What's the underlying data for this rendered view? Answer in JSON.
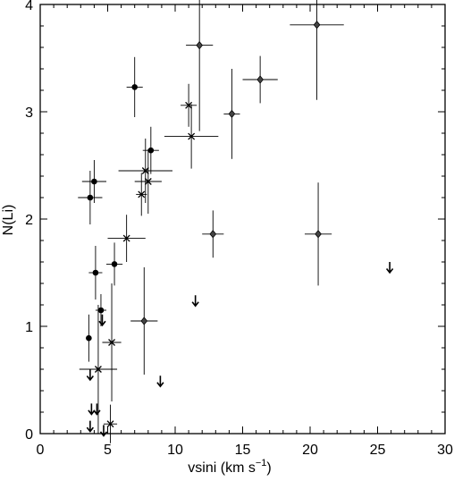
{
  "chart_data": {
    "type": "scatter",
    "title": "",
    "xlabel": "vsini (km s",
    "xlabel_unit_suffix": ")",
    "xlabel_superscript": "−1",
    "ylabel": "N(Li)",
    "xlim": [
      0,
      30
    ],
    "ylim": [
      0,
      4
    ],
    "x_ticks": [
      0,
      5,
      10,
      15,
      20,
      25,
      30
    ],
    "x_tick_labels": [
      "0",
      "5",
      "10",
      "15",
      "20",
      "25",
      "30"
    ],
    "y_ticks": [
      0,
      1,
      2,
      3,
      4
    ],
    "y_tick_labels": [
      "0",
      "1",
      "2",
      "3",
      "4"
    ],
    "grid": false,
    "legend": "none",
    "series": [
      {
        "marker": "filled-circle",
        "points": [
          {
            "x": 7.0,
            "y": 3.23,
            "xerr": 0.6,
            "yerr": 0.28
          },
          {
            "x": 8.2,
            "y": 2.64,
            "xerr": 0.6,
            "yerr": 0.22
          },
          {
            "x": 4.0,
            "y": 2.35,
            "xerr": 0.9,
            "yerr": 0.2
          },
          {
            "x": 3.7,
            "y": 2.2,
            "xerr": 0.9,
            "yerr": 0.25
          },
          {
            "x": 5.5,
            "y": 1.58,
            "xerr": 0.6,
            "yerr": 0.2
          },
          {
            "x": 4.1,
            "y": 1.5,
            "xerr": 0.5,
            "yerr": 0.25
          },
          {
            "x": 4.5,
            "y": 1.15,
            "xerr": 0.4,
            "yerr": 0.15
          },
          {
            "x": 3.6,
            "y": 0.89,
            "xerr": 0.0,
            "yerr": 0.22
          }
        ]
      },
      {
        "marker": "diamond",
        "points": [
          {
            "x": 20.5,
            "y": 3.81,
            "xerr": 2.0,
            "yerr": 0.7
          },
          {
            "x": 11.8,
            "y": 3.62,
            "xerr": 1.0,
            "yerr": 0.8
          },
          {
            "x": 16.3,
            "y": 3.3,
            "xerr": 1.3,
            "yerr": 0.22
          },
          {
            "x": 14.2,
            "y": 2.98,
            "xerr": 0.6,
            "yerr": 0.42
          },
          {
            "x": 12.8,
            "y": 1.86,
            "xerr": 0.8,
            "yerr": 0.22
          },
          {
            "x": 20.6,
            "y": 1.86,
            "xerr": 1.0,
            "yerr": 0.48
          },
          {
            "x": 7.7,
            "y": 1.05,
            "xerr": 1.0,
            "yerr": 0.5
          }
        ]
      },
      {
        "marker": "cross",
        "points": [
          {
            "x": 11.0,
            "y": 3.06,
            "xerr": 0.6,
            "yerr": 0.2
          },
          {
            "x": 11.2,
            "y": 2.77,
            "xerr": 2.0,
            "yerr": 0.3
          },
          {
            "x": 7.8,
            "y": 2.45,
            "xerr": 2.0,
            "yerr": 0.3
          },
          {
            "x": 8.0,
            "y": 2.35,
            "xerr": 1.0,
            "yerr": 0.3
          },
          {
            "x": 7.5,
            "y": 2.23,
            "xerr": 0.4,
            "yerr": 0.2
          },
          {
            "x": 6.4,
            "y": 1.82,
            "xerr": 1.4,
            "yerr": 0.22
          },
          {
            "x": 5.3,
            "y": 0.85,
            "xerr": 0.7,
            "yerr": 0.55
          },
          {
            "x": 4.3,
            "y": 0.6,
            "xerr": 1.4,
            "yerr": 0.6
          },
          {
            "x": 5.2,
            "y": 0.09,
            "xerr": 0.5,
            "yerr": 0.18
          }
        ]
      },
      {
        "marker": "upper-limit-arrow",
        "points": [
          {
            "x": 25.9,
            "y": 1.55
          },
          {
            "x": 11.5,
            "y": 1.24
          },
          {
            "x": 4.6,
            "y": 1.06
          },
          {
            "x": 8.9,
            "y": 0.49
          },
          {
            "x": 3.7,
            "y": 0.55
          },
          {
            "x": 3.8,
            "y": 0.23
          },
          {
            "x": 4.2,
            "y": 0.23
          },
          {
            "x": 3.7,
            "y": 0.07
          },
          {
            "x": 4.7,
            "y": 0.03
          }
        ]
      }
    ]
  }
}
